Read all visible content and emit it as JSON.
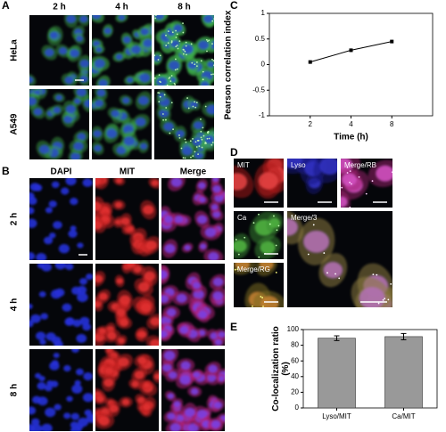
{
  "figure": {
    "panel_a": {
      "label": "A",
      "columns": [
        "2 h",
        "4 h",
        "8 h"
      ],
      "rows": [
        "HeLa",
        "A549"
      ]
    },
    "panel_b": {
      "label": "B",
      "columns": [
        "DAPI",
        "MIT",
        "Merge"
      ],
      "rows": [
        "2 h",
        "4 h",
        "8 h"
      ]
    },
    "panel_c": {
      "label": "C"
    },
    "panel_d": {
      "label": "D",
      "images": [
        "MIT",
        "Lyso",
        "Merge/RB",
        "Ca",
        "Merge/3",
        "Merge/RG"
      ]
    },
    "panel_e": {
      "label": "E"
    }
  },
  "chart_data": [
    {
      "type": "line",
      "x_label": "Time (h)",
      "y_label": "Pearson correlation index",
      "categories": [
        "2",
        "4",
        "8"
      ],
      "values": [
        0.05,
        0.28,
        0.45
      ],
      "errors": [
        0.02,
        0.03,
        0.03
      ],
      "color": "#000000",
      "ylim": [
        -1,
        1
      ],
      "yticks": [
        -1,
        -0.5,
        0,
        0.5,
        1
      ]
    },
    {
      "type": "bar",
      "y_label": "Co-localization ratio (%)",
      "categories": [
        "Lyso/MIT",
        "Ca/MIT"
      ],
      "values": [
        89,
        91
      ],
      "errors": [
        3,
        4
      ],
      "color": "#999999",
      "ylim": [
        0,
        100
      ],
      "yticks": [
        0,
        20,
        40,
        60,
        80,
        100
      ]
    }
  ]
}
